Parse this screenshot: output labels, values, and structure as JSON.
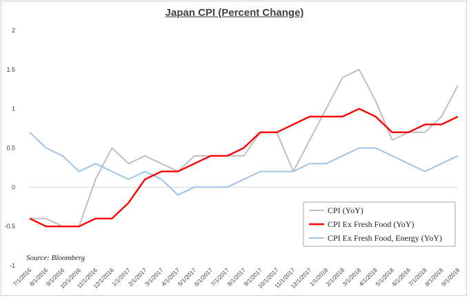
{
  "chart_data": {
    "type": "line",
    "title": "Japan CPI (Percent Change)",
    "source": "Source: Bloomberg",
    "x": [
      "7/1/2016",
      "8/1/2016",
      "9/1/2016",
      "10/1/2016",
      "11/1/2016",
      "12/1/2016",
      "1/1/2017",
      "2/1/2017",
      "3/1/2017",
      "4/1/2017",
      "5/1/2017",
      "6/1/2017",
      "7/1/2017",
      "8/1/2017",
      "9/1/2017",
      "10/1/2017",
      "11/1/2017",
      "12/1/2017",
      "1/1/2018",
      "2/1/2018",
      "3/1/2018",
      "4/1/2018",
      "5/1/2018",
      "6/1/2018",
      "7/1/2018",
      "8/1/2018",
      "9/1/2018"
    ],
    "ylim": [
      -1,
      2
    ],
    "yticks": [
      -1,
      -0.5,
      0,
      0.5,
      1,
      1.5,
      2
    ],
    "grid": false,
    "legend_position": "bottom-right",
    "series": [
      {
        "name": "CPI (YoY)",
        "color": "#bfbfbf",
        "values": [
          -0.4,
          -0.4,
          -0.5,
          -0.5,
          0.1,
          0.5,
          0.3,
          0.4,
          0.3,
          0.2,
          0.4,
          0.4,
          0.4,
          0.4,
          0.7,
          0.7,
          0.2,
          0.6,
          1.0,
          1.4,
          1.5,
          1.1,
          0.6,
          0.7,
          0.7,
          0.9,
          1.3
        ]
      },
      {
        "name": "CPI Ex Fresh Food (YoY)",
        "color": "#ff0000",
        "values": [
          -0.4,
          -0.5,
          -0.5,
          -0.5,
          -0.4,
          -0.4,
          -0.2,
          0.1,
          0.2,
          0.2,
          0.3,
          0.4,
          0.4,
          0.5,
          0.7,
          0.7,
          0.8,
          0.9,
          0.9,
          0.9,
          1.0,
          0.9,
          0.7,
          0.7,
          0.8,
          0.8,
          0.9
        ]
      },
      {
        "name": "CPI Ex Fresh Food, Energy (YoY)",
        "color": "#9dc3e6",
        "values": [
          0.7,
          0.5,
          0.4,
          0.2,
          0.3,
          0.2,
          0.1,
          0.2,
          0.1,
          -0.1,
          0.0,
          0.0,
          0.0,
          0.1,
          0.2,
          0.2,
          0.2,
          0.3,
          0.3,
          0.4,
          0.5,
          0.5,
          0.4,
          0.3,
          0.2,
          0.3,
          0.4
        ]
      }
    ]
  }
}
